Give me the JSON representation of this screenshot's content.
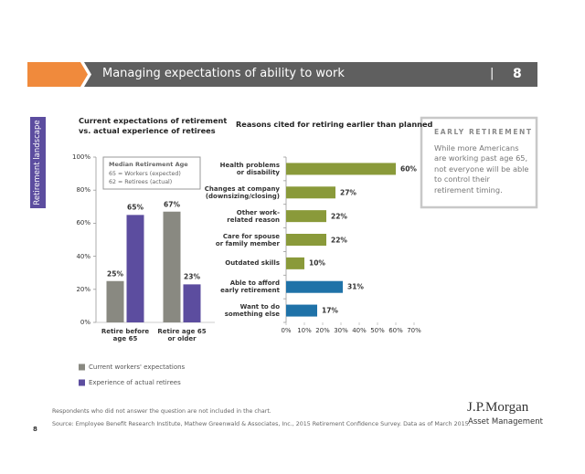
{
  "header": {
    "title": "Managing expectations of ability to work",
    "separator": "|",
    "page": "8"
  },
  "side_tab": "Retirement landscape",
  "chart_data": [
    {
      "type": "bar",
      "title": "Current expectations of retirement\nvs. actual experience of retirees",
      "categories": [
        "Retire before\nage 65",
        "Retire age 65\nor older"
      ],
      "series": [
        {
          "name": "Current workers' expectations",
          "color": "#898981",
          "values": [
            25,
            67
          ],
          "value_labels": [
            "25%",
            "67%"
          ]
        },
        {
          "name": "Experience of actual retirees",
          "color": "#5c4d9f",
          "values": [
            65,
            23
          ],
          "value_labels": [
            "65%",
            "23%"
          ]
        }
      ],
      "ylim": [
        0,
        100
      ],
      "yticks": [
        {
          "value": 0,
          "label": "0%"
        },
        {
          "value": 20,
          "label": "20%"
        },
        {
          "value": 40,
          "label": "40%"
        },
        {
          "value": 60,
          "label": "60%"
        },
        {
          "value": 80,
          "label": "80%"
        },
        {
          "value": 100,
          "label": "100%"
        }
      ],
      "annotation": {
        "title": "Median Retirement Age",
        "lines": [
          "65 = Workers (expected)",
          "62 = Retirees (actual)"
        ]
      }
    },
    {
      "type": "hbar",
      "title": "Reasons cited for retiring earlier than planned",
      "categories": [
        "Health problems\nor disability",
        "Changes at company\n(downsizing/closing)",
        "Other work-\nrelated reason",
        "Care for spouse\nor family member",
        "Outdated skills",
        "Able to afford\nearly retirement",
        "Want to do\nsomething else"
      ],
      "values": [
        60,
        27,
        22,
        22,
        10,
        31,
        17
      ],
      "value_labels": [
        "60%",
        "27%",
        "22%",
        "22%",
        "10%",
        "31%",
        "17%"
      ],
      "colors": [
        "#8a9a3a",
        "#8a9a3a",
        "#8a9a3a",
        "#8a9a3a",
        "#8a9a3a",
        "#1f72a8",
        "#1f72a8"
      ],
      "xlim": [
        0,
        70
      ],
      "xticks": [
        {
          "value": 0,
          "label": "0%"
        },
        {
          "value": 10,
          "label": "10%"
        },
        {
          "value": 20,
          "label": "20%"
        },
        {
          "value": 30,
          "label": "30%"
        },
        {
          "value": 40,
          "label": "40%"
        },
        {
          "value": 50,
          "label": "50%"
        },
        {
          "value": 60,
          "label": "60%"
        },
        {
          "value": 70,
          "label": "70%"
        }
      ]
    }
  ],
  "callout": {
    "title": "EARLY RETIREMENT",
    "text": "While more Americans are working past age 65, not everyone will be able to control their retirement timing."
  },
  "footnote": "Respondents who did not answer the question are not included in the chart.",
  "source": "Source: Employee Benefit Research Institute, Mathew Greenwald & Associates, Inc., 2015 Retirement Confidence Survey. Data as of March 2015.",
  "logo": {
    "name": "J.P.Morgan",
    "sub": "Asset Management"
  },
  "page_number": "8"
}
